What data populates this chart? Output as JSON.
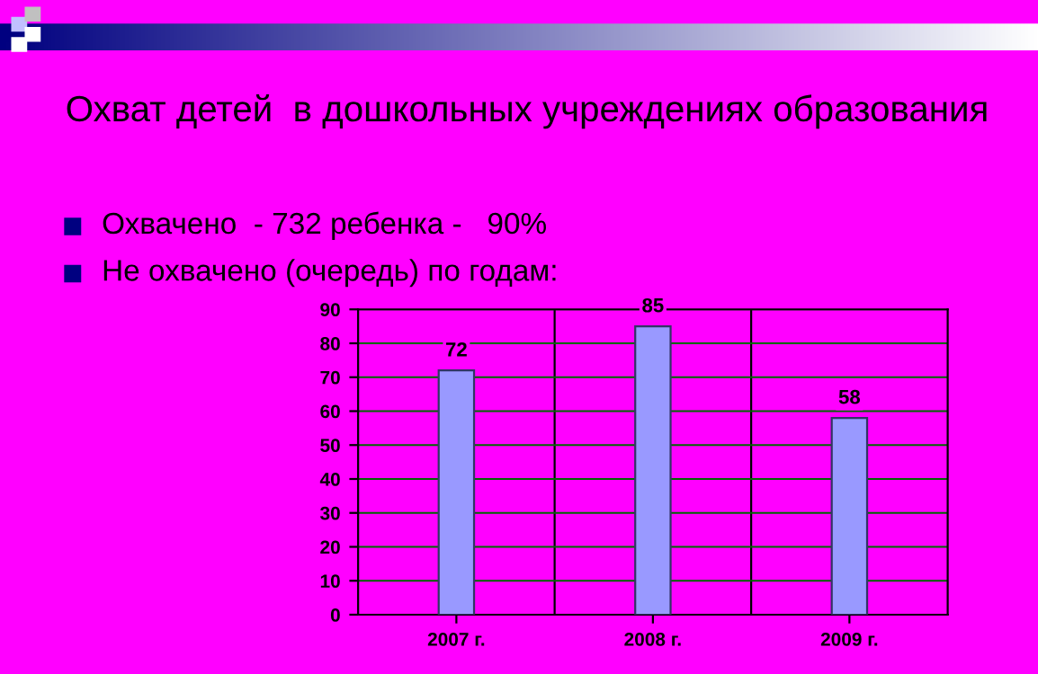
{
  "chart_data": {
    "type": "bar",
    "title": "Охват детей  в дошкольных учреждениях образования",
    "annotations": [
      "Охвачено  - 732 ребенка -   90%",
      "Не охвачено (очередь) по годам:"
    ],
    "categories": [
      "2007 г.",
      "2008 г.",
      "2009 г."
    ],
    "values": [
      72,
      85,
      58
    ],
    "color": "#9999ff",
    "ylim": [
      0,
      90
    ],
    "yticks": [
      0,
      10,
      20,
      30,
      40,
      50,
      60,
      70,
      80,
      90
    ],
    "grid": true,
    "data_labels": true
  }
}
